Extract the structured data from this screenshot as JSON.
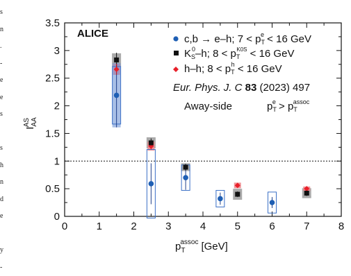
{
  "margin_text": [
    "s",
    "n",
    ".",
    "-",
    "e",
    "e",
    "s",
    "",
    "s",
    "h",
    "n",
    "d",
    "e",
    "",
    "y",
    "-"
  ],
  "chart_data": {
    "type": "scatter",
    "xlabel_main": "p",
    "xlabel_sub": "T",
    "xlabel_sup": "assoc",
    "xlabel_unit": "[GeV]",
    "ylabel_main": "I",
    "ylabel_sub": "AA",
    "ylabel_sup": "AS",
    "xlim": [
      0,
      8
    ],
    "ylim": [
      0,
      3.5
    ],
    "xticks": [
      "0",
      "1",
      "2",
      "3",
      "4",
      "5",
      "6",
      "7",
      "8"
    ],
    "yticks": [
      "0",
      "0.5",
      "1",
      "1.5",
      "2",
      "2.5",
      "3",
      "3.5"
    ],
    "reference_line": 1,
    "experiment": "ALICE",
    "legend": [
      {
        "marker": "circle",
        "color": "#1f5fb4",
        "parts": [
          "c,b → e–h; 7 < p",
          "T",
          "e",
          " < 16 GeV"
        ]
      },
      {
        "marker": "square",
        "color": "#111111",
        "parts": [
          "K",
          "S",
          "0",
          "–h; 8 < p",
          "T",
          "K0S",
          " < 16 GeV"
        ]
      },
      {
        "marker": "diamond",
        "color": "#e8202a",
        "parts": [
          "h–h; 8 < p",
          "T",
          "h",
          " < 16 GeV"
        ]
      }
    ],
    "reference_journal": "Eur. Phys. J. C",
    "reference_volume": "83",
    "reference_rest": "(2023) 497",
    "note_side": "Away-side",
    "note_cut": [
      "p",
      "T",
      "e",
      " > p",
      "T",
      "assoc"
    ],
    "series": [
      {
        "name": "c,b → e–h",
        "marker": "circle",
        "color": "#1f5fb4",
        "points": [
          {
            "x": 1.5,
            "y": 2.19,
            "stat": 0.58,
            "sys": 0.52,
            "band": 0.58
          },
          {
            "x": 2.5,
            "y": 0.59,
            "stat": 0.37,
            "sys": 0.62,
            "band": 0
          },
          {
            "x": 3.5,
            "y": 0.7,
            "stat": 0.22,
            "sys": 0.23,
            "band": 0
          },
          {
            "x": 4.5,
            "y": 0.32,
            "stat": 0.11,
            "sys": 0.15,
            "band": 0
          },
          {
            "x": 6.0,
            "y": 0.25,
            "stat": 0.1,
            "sys": 0.19,
            "band": 0
          }
        ]
      },
      {
        "name": "K0S–h",
        "marker": "square",
        "color": "#111111",
        "points": [
          {
            "x": 1.5,
            "y": 2.83,
            "stat": 0.13,
            "sys": 0.12
          },
          {
            "x": 2.5,
            "y": 1.33,
            "stat": 0.08,
            "sys": 0.1
          },
          {
            "x": 3.5,
            "y": 0.89,
            "stat": 0.06,
            "sys": 0.07
          },
          {
            "x": 5.0,
            "y": 0.4,
            "stat": 0.05,
            "sys": 0.1
          },
          {
            "x": 7.0,
            "y": 0.42,
            "stat": 0.05,
            "sys": 0.09
          }
        ]
      },
      {
        "name": "h–h",
        "marker": "diamond",
        "color": "#e8202a",
        "points": [
          {
            "x": 1.5,
            "y": 2.66,
            "stat": 0.1,
            "sys": 0.1
          },
          {
            "x": 2.5,
            "y": 1.27,
            "stat": 0.06,
            "sys": 0.08
          },
          {
            "x": 5.0,
            "y": 0.56,
            "stat": 0.03,
            "sys": 0.05
          },
          {
            "x": 7.0,
            "y": 0.5,
            "stat": 0.03,
            "sys": 0.04
          }
        ]
      }
    ]
  }
}
